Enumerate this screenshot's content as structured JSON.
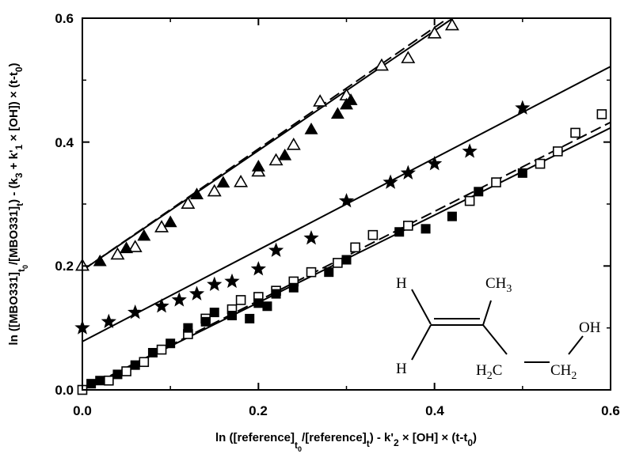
{
  "chart_data": {
    "type": "scatter",
    "title": "",
    "xlabel": "ln ([reference]t0/[reference]t) - k'2 × [OH] × (t-t0)",
    "ylabel": "ln ([MBO331]t0/[MBO331]t) - (k3 + k'1 × [OH]) × (t-t0)",
    "xlabel_parts": {
      "a": "ln ([reference]",
      "a_sub": "t",
      "a_subsub": "0",
      "b": "/[reference]",
      "b_sub": "t",
      "c": ") - k'",
      "c_sub": "2",
      "d": " × [OH] × (t-t",
      "d_sub": "0",
      "e": ")"
    },
    "ylabel_parts": {
      "a": "ln ([MBO331]",
      "a_sub": "t",
      "a_subsub": "0",
      "b": "/[MBO331]",
      "b_sub": "t",
      "c": ") - (k",
      "c_sub": "3",
      "d": " + k'",
      "d_sub": "1",
      "e": " × [OH]) × (t-t",
      "e_sub": "0",
      "f": ")"
    },
    "xlim": [
      0,
      0.6
    ],
    "ylim": [
      0,
      0.6
    ],
    "xticks": [
      "0.0",
      "0.2",
      "0.4",
      "0.6"
    ],
    "yticks": [
      "0.0",
      "0.2",
      "0.4",
      "0.6"
    ],
    "grid": false,
    "legend": "none",
    "series": [
      {
        "marker": "open-triangle",
        "fit_line": "dashed",
        "fit": {
          "slope": 0.98,
          "intercept": 0.193
        },
        "points": [
          [
            0.0,
            0.2
          ],
          [
            0.04,
            0.218
          ],
          [
            0.06,
            0.23
          ],
          [
            0.09,
            0.262
          ],
          [
            0.12,
            0.3
          ],
          [
            0.15,
            0.32
          ],
          [
            0.18,
            0.335
          ],
          [
            0.2,
            0.352
          ],
          [
            0.22,
            0.37
          ],
          [
            0.24,
            0.395
          ],
          [
            0.27,
            0.465
          ],
          [
            0.3,
            0.475
          ],
          [
            0.34,
            0.523
          ],
          [
            0.37,
            0.535
          ],
          [
            0.4,
            0.575
          ],
          [
            0.42,
            0.588
          ]
        ]
      },
      {
        "marker": "filled-triangle",
        "fit_line": "solid",
        "fit": {
          "slope": 0.967,
          "intercept": 0.193
        },
        "points": [
          [
            0.02,
            0.207
          ],
          [
            0.05,
            0.228
          ],
          [
            0.07,
            0.248
          ],
          [
            0.1,
            0.27
          ],
          [
            0.13,
            0.315
          ],
          [
            0.16,
            0.334
          ],
          [
            0.2,
            0.36
          ],
          [
            0.23,
            0.378
          ],
          [
            0.26,
            0.42
          ],
          [
            0.29,
            0.445
          ],
          [
            0.3,
            0.46
          ],
          [
            0.305,
            0.467
          ]
        ]
      },
      {
        "marker": "filled-star",
        "fit_line": "solid",
        "fit": {
          "slope": 0.74,
          "intercept": 0.078
        },
        "points": [
          [
            0.0,
            0.1
          ],
          [
            0.03,
            0.11
          ],
          [
            0.06,
            0.125
          ],
          [
            0.09,
            0.135
          ],
          [
            0.11,
            0.145
          ],
          [
            0.13,
            0.155
          ],
          [
            0.15,
            0.17
          ],
          [
            0.17,
            0.175
          ],
          [
            0.2,
            0.195
          ],
          [
            0.22,
            0.225
          ],
          [
            0.26,
            0.245
          ],
          [
            0.3,
            0.305
          ],
          [
            0.35,
            0.335
          ],
          [
            0.37,
            0.35
          ],
          [
            0.4,
            0.365
          ],
          [
            0.44,
            0.385
          ],
          [
            0.5,
            0.455
          ]
        ]
      },
      {
        "marker": "open-square",
        "fit_line": "dashed",
        "fit": {
          "slope": 0.72,
          "intercept": 0.0
        },
        "points": [
          [
            0.0,
            0.0
          ],
          [
            0.03,
            0.015
          ],
          [
            0.05,
            0.03
          ],
          [
            0.07,
            0.045
          ],
          [
            0.09,
            0.065
          ],
          [
            0.12,
            0.09
          ],
          [
            0.14,
            0.115
          ],
          [
            0.17,
            0.13
          ],
          [
            0.18,
            0.145
          ],
          [
            0.2,
            0.15
          ],
          [
            0.22,
            0.16
          ],
          [
            0.24,
            0.175
          ],
          [
            0.26,
            0.19
          ],
          [
            0.29,
            0.205
          ],
          [
            0.31,
            0.23
          ],
          [
            0.33,
            0.25
          ],
          [
            0.37,
            0.265
          ],
          [
            0.44,
            0.305
          ],
          [
            0.47,
            0.335
          ],
          [
            0.52,
            0.365
          ],
          [
            0.54,
            0.385
          ],
          [
            0.56,
            0.415
          ],
          [
            0.59,
            0.445
          ]
        ]
      },
      {
        "marker": "filled-square",
        "fit_line": "solid",
        "fit": {
          "slope": 0.705,
          "intercept": 0.0
        },
        "points": [
          [
            0.01,
            0.01
          ],
          [
            0.02,
            0.015
          ],
          [
            0.04,
            0.025
          ],
          [
            0.06,
            0.04
          ],
          [
            0.08,
            0.06
          ],
          [
            0.1,
            0.075
          ],
          [
            0.12,
            0.1
          ],
          [
            0.14,
            0.11
          ],
          [
            0.15,
            0.125
          ],
          [
            0.17,
            0.12
          ],
          [
            0.19,
            0.115
          ],
          [
            0.2,
            0.14
          ],
          [
            0.21,
            0.135
          ],
          [
            0.22,
            0.155
          ],
          [
            0.24,
            0.165
          ],
          [
            0.28,
            0.19
          ],
          [
            0.3,
            0.21
          ],
          [
            0.36,
            0.255
          ],
          [
            0.39,
            0.26
          ],
          [
            0.42,
            0.28
          ],
          [
            0.45,
            0.32
          ],
          [
            0.5,
            0.35
          ]
        ]
      }
    ],
    "annotation": {
      "h_top": "H",
      "h_bottom": "H",
      "ch3": "CH",
      "ch3_sub": "3",
      "oh": "OH",
      "h2c_pre": "H",
      "h2c_sub": "2",
      "h2c_post": "C",
      "ch2": "CH",
      "ch2_sub": "2"
    }
  }
}
